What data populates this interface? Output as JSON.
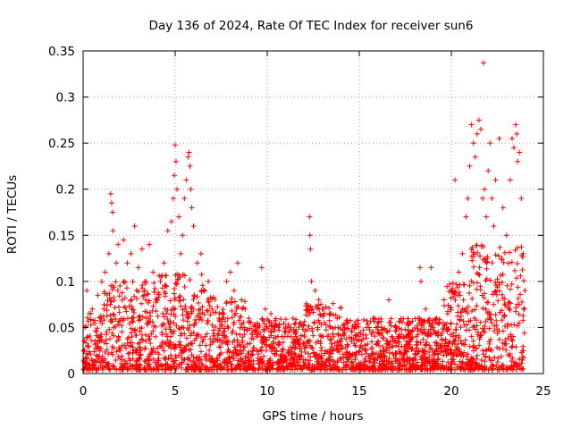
{
  "chart_data": {
    "type": "scatter",
    "title": "Day 136 of 2024, Rate Of TEC Index for receiver sun6",
    "xlabel": "GPS time / hours",
    "ylabel": "ROTI / TECUs",
    "xlim": [
      0,
      25
    ],
    "ylim": [
      0,
      0.35
    ],
    "xticks": [
      "0",
      "5",
      "10",
      "15",
      "20",
      "25"
    ],
    "yticks": [
      "0",
      "0.05",
      "0.1",
      "0.15",
      "0.2",
      "0.25",
      "0.3",
      "0.35"
    ],
    "grid": true,
    "marker": "plus",
    "color": "#ff0000",
    "series": [
      {
        "points": [
          [
            0.1,
            0.05
          ],
          [
            0.2,
            0.09
          ],
          [
            0.3,
            0.03
          ],
          [
            0.5,
            0.07
          ],
          [
            0.8,
            0.085
          ],
          [
            1.0,
            0.06
          ],
          [
            1.2,
            0.11
          ],
          [
            1.4,
            0.13
          ],
          [
            1.5,
            0.195
          ],
          [
            1.55,
            0.185
          ],
          [
            1.6,
            0.175
          ],
          [
            1.62,
            0.155
          ],
          [
            1.8,
            0.12
          ],
          [
            1.9,
            0.14
          ],
          [
            2.0,
            0.095
          ],
          [
            2.2,
            0.145
          ],
          [
            2.4,
            0.12
          ],
          [
            2.6,
            0.13
          ],
          [
            2.8,
            0.16
          ],
          [
            3.0,
            0.115
          ],
          [
            3.2,
            0.135
          ],
          [
            3.4,
            0.1
          ],
          [
            3.6,
            0.14
          ],
          [
            3.8,
            0.11
          ],
          [
            4.0,
            0.08
          ],
          [
            4.2,
            0.1
          ],
          [
            4.4,
            0.12
          ],
          [
            4.6,
            0.155
          ],
          [
            4.8,
            0.165
          ],
          [
            4.9,
            0.19
          ],
          [
            4.95,
            0.215
          ],
          [
            5.0,
            0.248
          ],
          [
            5.05,
            0.23
          ],
          [
            5.1,
            0.2
          ],
          [
            5.2,
            0.17
          ],
          [
            5.3,
            0.13
          ],
          [
            5.4,
            0.15
          ],
          [
            5.5,
            0.19
          ],
          [
            5.6,
            0.21
          ],
          [
            5.7,
            0.235
          ],
          [
            5.75,
            0.24
          ],
          [
            5.8,
            0.225
          ],
          [
            5.85,
            0.2
          ],
          [
            5.9,
            0.18
          ],
          [
            6.0,
            0.16
          ],
          [
            6.2,
            0.12
          ],
          [
            6.4,
            0.13
          ],
          [
            6.6,
            0.09
          ],
          [
            6.8,
            0.1
          ],
          [
            7.0,
            0.07
          ],
          [
            7.4,
            0.065
          ],
          [
            7.8,
            0.1
          ],
          [
            8.0,
            0.11
          ],
          [
            8.2,
            0.09
          ],
          [
            8.4,
            0.12
          ],
          [
            8.6,
            0.08
          ],
          [
            8.8,
            0.07
          ],
          [
            9.0,
            0.06
          ],
          [
            9.5,
            0.05
          ],
          [
            9.7,
            0.115
          ],
          [
            9.9,
            0.07
          ],
          [
            10.2,
            0.065
          ],
          [
            10.6,
            0.05
          ],
          [
            11.0,
            0.045
          ],
          [
            11.4,
            0.06
          ],
          [
            11.8,
            0.055
          ],
          [
            12.2,
            0.07
          ],
          [
            12.3,
            0.17
          ],
          [
            12.32,
            0.15
          ],
          [
            12.35,
            0.135
          ],
          [
            12.4,
            0.1
          ],
          [
            12.6,
            0.09
          ],
          [
            12.8,
            0.08
          ],
          [
            13.0,
            0.07
          ],
          [
            13.4,
            0.065
          ],
          [
            13.8,
            0.06
          ],
          [
            14.2,
            0.05
          ],
          [
            14.6,
            0.045
          ],
          [
            15.0,
            0.04
          ],
          [
            15.4,
            0.05
          ],
          [
            15.8,
            0.06
          ],
          [
            16.2,
            0.05
          ],
          [
            16.6,
            0.08
          ],
          [
            17.0,
            0.05
          ],
          [
            17.4,
            0.04
          ],
          [
            17.8,
            0.045
          ],
          [
            18.2,
            0.06
          ],
          [
            18.3,
            0.115
          ],
          [
            18.35,
            0.1
          ],
          [
            18.6,
            0.07
          ],
          [
            18.9,
            0.115
          ],
          [
            19.2,
            0.06
          ],
          [
            19.6,
            0.08
          ],
          [
            19.8,
            0.065
          ],
          [
            20.0,
            0.09
          ],
          [
            20.2,
            0.21
          ],
          [
            20.4,
            0.11
          ],
          [
            20.6,
            0.13
          ],
          [
            20.8,
            0.17
          ],
          [
            20.9,
            0.19
          ],
          [
            21.0,
            0.225
          ],
          [
            21.1,
            0.27
          ],
          [
            21.2,
            0.25
          ],
          [
            21.3,
            0.235
          ],
          [
            21.4,
            0.26
          ],
          [
            21.5,
            0.275
          ],
          [
            21.6,
            0.265
          ],
          [
            21.7,
            0.19
          ],
          [
            21.75,
            0.337
          ],
          [
            21.8,
            0.2
          ],
          [
            21.9,
            0.17
          ],
          [
            22.0,
            0.22
          ],
          [
            22.1,
            0.25
          ],
          [
            22.2,
            0.19
          ],
          [
            22.3,
            0.16
          ],
          [
            22.4,
            0.21
          ],
          [
            22.6,
            0.255
          ],
          [
            22.8,
            0.18
          ],
          [
            23.0,
            0.15
          ],
          [
            23.2,
            0.21
          ],
          [
            23.3,
            0.255
          ],
          [
            23.4,
            0.245
          ],
          [
            23.5,
            0.27
          ],
          [
            23.55,
            0.26
          ],
          [
            23.6,
            0.23
          ],
          [
            23.7,
            0.24
          ],
          [
            23.8,
            0.19
          ],
          [
            23.9,
            0.13
          ],
          [
            24.0,
            0.09
          ]
        ]
      }
    ]
  }
}
